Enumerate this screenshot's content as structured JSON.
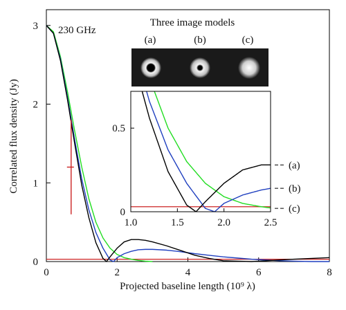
{
  "chart_data": {
    "type": "line",
    "annotation": "230 GHz",
    "xlabel": "Projected baseline length (10⁹ λ)",
    "ylabel": "Correlated flux density (Jy)",
    "xlim": [
      0,
      8
    ],
    "ylim": [
      0,
      3.2
    ],
    "xticks": [
      "0",
      "2",
      "4",
      "6",
      "8"
    ],
    "yticks": [
      "0",
      "1",
      "2",
      "3"
    ],
    "colors": {
      "a": "#000000",
      "b": "#1f3fbf",
      "c": "#22dd22",
      "threshold": "#cc2222",
      "datapoint": "#cc2222"
    },
    "threshold_y": 0.03,
    "datapoint": {
      "x": 0.7,
      "y": 1.2,
      "ylow": 0.6,
      "yhigh": 1.8
    },
    "series": [
      {
        "key": "a",
        "x": [
          0,
          0.2,
          0.4,
          0.6,
          0.8,
          1.0,
          1.2,
          1.4,
          1.6,
          1.7,
          1.8,
          2.0,
          2.2,
          2.4,
          2.6,
          2.8,
          3.0,
          3.4,
          3.8,
          4.2,
          4.6,
          5.0,
          5.4,
          5.8,
          6.2,
          6.6,
          7.0,
          7.5,
          8.0
        ],
        "y": [
          3.0,
          2.9,
          2.55,
          2.05,
          1.5,
          0.97,
          0.56,
          0.24,
          0.04,
          0.0,
          0.06,
          0.17,
          0.25,
          0.28,
          0.28,
          0.27,
          0.25,
          0.2,
          0.14,
          0.08,
          0.04,
          0.01,
          0.005,
          0.0,
          0.01,
          0.02,
          0.03,
          0.04,
          0.05
        ]
      },
      {
        "key": "b",
        "x": [
          0,
          0.2,
          0.4,
          0.6,
          0.8,
          1.0,
          1.2,
          1.4,
          1.6,
          1.8,
          1.9,
          2.0,
          2.2,
          2.4,
          2.6,
          2.8,
          3.0,
          3.4,
          3.8,
          4.2,
          4.6,
          5.0,
          5.4,
          5.8,
          6.2,
          6.6,
          7.0,
          7.5,
          8.0
        ],
        "y": [
          3.0,
          2.9,
          2.57,
          2.08,
          1.55,
          1.05,
          0.66,
          0.37,
          0.17,
          0.02,
          0.0,
          0.05,
          0.1,
          0.13,
          0.15,
          0.155,
          0.155,
          0.145,
          0.125,
          0.1,
          0.08,
          0.06,
          0.045,
          0.03,
          0.02,
          0.01,
          0.005,
          0.0,
          0.0
        ]
      },
      {
        "key": "c",
        "x": [
          0,
          0.2,
          0.4,
          0.6,
          0.8,
          1.0,
          1.2,
          1.4,
          1.6,
          1.8,
          2.0,
          2.2,
          2.4,
          2.6,
          2.8,
          3.0
        ],
        "y": [
          3.0,
          2.92,
          2.6,
          2.15,
          1.66,
          1.2,
          0.8,
          0.5,
          0.3,
          0.17,
          0.09,
          0.05,
          0.03,
          0.015,
          0.005,
          0.0
        ]
      }
    ],
    "inset": {
      "title": "Three image models",
      "panel_labels": [
        "(a)",
        "(b)",
        "(c)"
      ],
      "xlim": [
        1.0,
        2.5
      ],
      "ylim": [
        0,
        0.72
      ],
      "xticks": [
        "1.0",
        "1.5",
        "2.0",
        "2.5"
      ],
      "yticks": [
        "0",
        "0.5"
      ],
      "series_labels": [
        "(a)",
        "(b)",
        "(c)"
      ]
    }
  }
}
